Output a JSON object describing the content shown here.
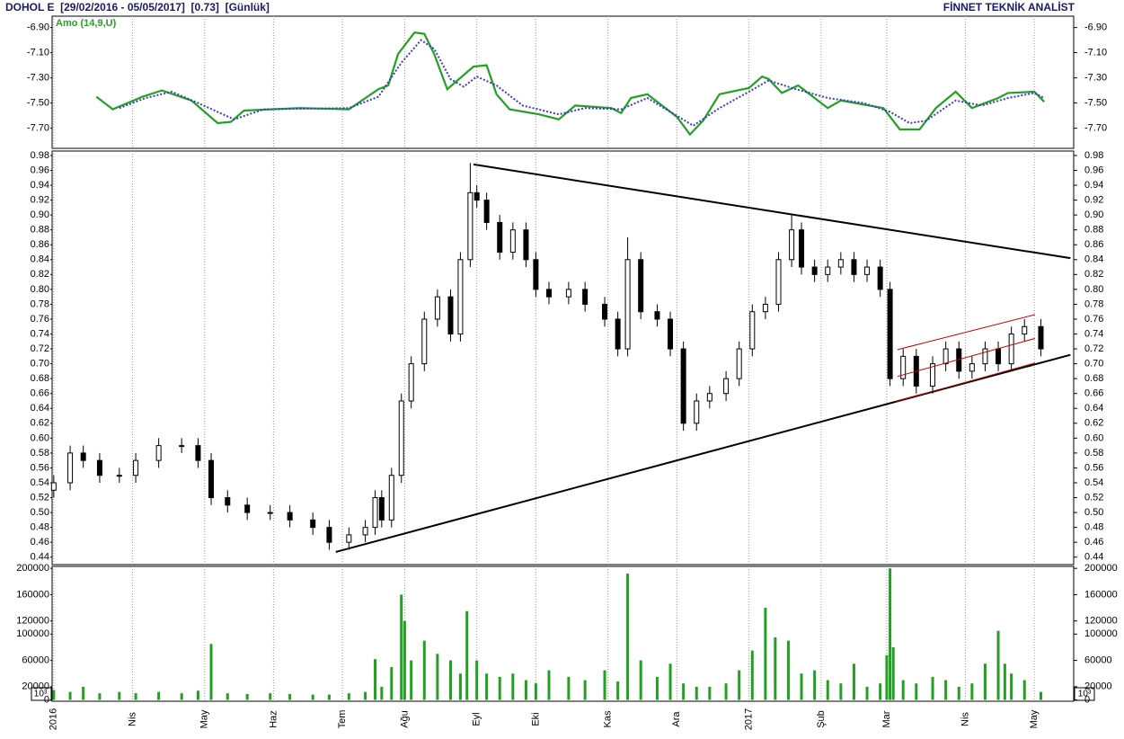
{
  "header": {
    "title": "DOHOL E  [29/02/2016 - 05/05/2017]  [0.73]  [Günlük]",
    "brand": "FİNNET TEKNİK ANALİST"
  },
  "chart_data": [
    {
      "type": "line",
      "label": "Amo (14,9,U)",
      "xlim": [
        -0.5,
        311
      ],
      "ylim": [
        -7.86,
        -6.81
      ],
      "yticks": [
        {
          "value": -6.9,
          "label": "-6.90"
        },
        {
          "value": -7.1,
          "label": "-7.10"
        },
        {
          "value": -7.3,
          "label": "-7.30"
        },
        {
          "value": -7.5,
          "label": "-7.50"
        },
        {
          "value": -7.7,
          "label": "-7.70"
        }
      ],
      "series": [
        {
          "color": "#22a022",
          "x": [
            13,
            18,
            27,
            33,
            42,
            50,
            54,
            58,
            75,
            90,
            99,
            102,
            105,
            110,
            113,
            116,
            120,
            128,
            132,
            135,
            139,
            148,
            154,
            159,
            170,
            173,
            176,
            181,
            190,
            194,
            198,
            203,
            212,
            216,
            218,
            222,
            227,
            236,
            240,
            253,
            258,
            264,
            269,
            275,
            280,
            288,
            291,
            299,
            302
          ],
          "values": [
            -7.45,
            -7.55,
            -7.45,
            -7.4,
            -7.48,
            -7.66,
            -7.65,
            -7.56,
            -7.54,
            -7.55,
            -7.39,
            -7.36,
            -7.11,
            -6.94,
            -6.95,
            -7.11,
            -7.39,
            -7.21,
            -7.2,
            -7.43,
            -7.55,
            -7.59,
            -7.63,
            -7.52,
            -7.54,
            -7.58,
            -7.46,
            -7.43,
            -7.61,
            -7.75,
            -7.64,
            -7.43,
            -7.38,
            -7.29,
            -7.31,
            -7.42,
            -7.36,
            -7.54,
            -7.48,
            -7.54,
            -7.71,
            -7.71,
            -7.54,
            -7.41,
            -7.54,
            -7.46,
            -7.42,
            -7.41,
            -7.49
          ]
        },
        {
          "color": "#3a3ad0",
          "dash": true,
          "x": [
            20,
            28,
            36,
            44,
            55,
            64,
            90,
            99,
            106,
            112,
            116,
            121,
            125,
            129,
            135,
            143,
            154,
            162,
            173,
            181,
            195,
            203,
            212,
            218,
            225,
            236,
            247,
            255,
            261,
            266,
            275,
            283,
            291,
            299,
            302
          ],
          "values": [
            -7.54,
            -7.46,
            -7.41,
            -7.5,
            -7.63,
            -7.55,
            -7.54,
            -7.45,
            -7.18,
            -7.0,
            -7.07,
            -7.31,
            -7.37,
            -7.29,
            -7.36,
            -7.52,
            -7.59,
            -7.54,
            -7.55,
            -7.46,
            -7.68,
            -7.54,
            -7.41,
            -7.32,
            -7.38,
            -7.46,
            -7.5,
            -7.57,
            -7.66,
            -7.64,
            -7.48,
            -7.52,
            -7.46,
            -7.42,
            -7.46
          ]
        }
      ]
    },
    {
      "type": "candlestick",
      "xlim": [
        -0.5,
        311
      ],
      "ylim": [
        0.43,
        0.986
      ],
      "yticks": [
        {
          "value": 0.44,
          "label": "0.44"
        },
        {
          "value": 0.46,
          "label": "0.46"
        },
        {
          "value": 0.48,
          "label": "0.48"
        },
        {
          "value": 0.5,
          "label": "0.50"
        },
        {
          "value": 0.52,
          "label": "0.52"
        },
        {
          "value": 0.54,
          "label": "0.54"
        },
        {
          "value": 0.56,
          "label": "0.56"
        },
        {
          "value": 0.58,
          "label": "0.58"
        },
        {
          "value": 0.6,
          "label": "0.60"
        },
        {
          "value": 0.62,
          "label": "0.62"
        },
        {
          "value": 0.64,
          "label": "0.64"
        },
        {
          "value": 0.66,
          "label": "0.66"
        },
        {
          "value": 0.68,
          "label": "0.68"
        },
        {
          "value": 0.7,
          "label": "0.70"
        },
        {
          "value": 0.72,
          "label": "0.72"
        },
        {
          "value": 0.74,
          "label": "0.74"
        },
        {
          "value": 0.76,
          "label": "0.76"
        },
        {
          "value": 0.78,
          "label": "0.78"
        },
        {
          "value": 0.8,
          "label": "0.80"
        },
        {
          "value": 0.82,
          "label": "0.82"
        },
        {
          "value": 0.84,
          "label": "0.84"
        },
        {
          "value": 0.86,
          "label": "0.86"
        },
        {
          "value": 0.88,
          "label": "0.88"
        },
        {
          "value": 0.9,
          "label": "0.90"
        },
        {
          "value": 0.92,
          "label": "0.92"
        },
        {
          "value": 0.94,
          "label": "0.94"
        },
        {
          "value": 0.96,
          "label": "0.96"
        },
        {
          "value": 0.98,
          "label": "0.98"
        }
      ],
      "x": [
        0,
        5,
        9,
        14,
        20,
        25,
        32,
        39,
        44,
        48,
        53,
        59,
        66,
        72,
        79,
        84,
        90,
        95,
        98,
        100,
        103,
        106,
        109,
        113,
        117,
        121,
        124,
        127,
        129,
        132,
        136,
        140,
        144,
        147,
        151,
        157,
        162,
        168,
        172,
        175,
        179,
        184,
        188,
        192,
        196,
        200,
        205,
        209,
        213,
        217,
        221,
        225,
        228,
        232,
        236,
        240,
        244,
        248,
        252,
        255,
        259,
        263,
        268,
        272,
        276,
        280,
        284,
        288,
        292,
        296,
        301
      ],
      "open": [
        0.53,
        0.54,
        0.58,
        0.57,
        0.55,
        0.55,
        0.57,
        0.59,
        0.59,
        0.57,
        0.52,
        0.51,
        0.5,
        0.5,
        0.49,
        0.48,
        0.46,
        0.47,
        0.48,
        0.52,
        0.49,
        0.55,
        0.65,
        0.7,
        0.76,
        0.79,
        0.74,
        0.84,
        0.93,
        0.92,
        0.89,
        0.85,
        0.88,
        0.84,
        0.8,
        0.79,
        0.8,
        0.78,
        0.76,
        0.72,
        0.84,
        0.77,
        0.76,
        0.72,
        0.62,
        0.65,
        0.66,
        0.68,
        0.72,
        0.77,
        0.78,
        0.84,
        0.88,
        0.83,
        0.82,
        0.83,
        0.84,
        0.82,
        0.83,
        0.8,
        0.68,
        0.71,
        0.67,
        0.7,
        0.72,
        0.69,
        0.7,
        0.72,
        0.7,
        0.74,
        0.75
      ],
      "high": [
        0.55,
        0.59,
        0.59,
        0.58,
        0.56,
        0.58,
        0.6,
        0.6,
        0.6,
        0.58,
        0.53,
        0.52,
        0.51,
        0.51,
        0.5,
        0.49,
        0.48,
        0.49,
        0.53,
        0.53,
        0.56,
        0.66,
        0.71,
        0.77,
        0.8,
        0.8,
        0.85,
        0.97,
        0.94,
        0.93,
        0.9,
        0.89,
        0.89,
        0.85,
        0.81,
        0.81,
        0.81,
        0.79,
        0.77,
        0.87,
        0.85,
        0.78,
        0.77,
        0.73,
        0.66,
        0.67,
        0.69,
        0.73,
        0.78,
        0.79,
        0.85,
        0.9,
        0.89,
        0.84,
        0.84,
        0.85,
        0.85,
        0.84,
        0.84,
        0.81,
        0.72,
        0.72,
        0.71,
        0.73,
        0.73,
        0.71,
        0.73,
        0.73,
        0.75,
        0.76,
        0.76
      ],
      "low": [
        0.52,
        0.53,
        0.56,
        0.54,
        0.54,
        0.54,
        0.56,
        0.58,
        0.56,
        0.51,
        0.5,
        0.49,
        0.49,
        0.48,
        0.47,
        0.45,
        0.45,
        0.46,
        0.47,
        0.48,
        0.48,
        0.54,
        0.64,
        0.69,
        0.75,
        0.73,
        0.73,
        0.83,
        0.91,
        0.88,
        0.84,
        0.84,
        0.83,
        0.79,
        0.78,
        0.78,
        0.77,
        0.75,
        0.71,
        0.71,
        0.76,
        0.75,
        0.71,
        0.61,
        0.61,
        0.64,
        0.65,
        0.67,
        0.71,
        0.76,
        0.77,
        0.83,
        0.82,
        0.81,
        0.81,
        0.82,
        0.81,
        0.81,
        0.79,
        0.67,
        0.67,
        0.66,
        0.66,
        0.69,
        0.68,
        0.68,
        0.69,
        0.69,
        0.69,
        0.73,
        0.71
      ],
      "close": [
        0.54,
        0.58,
        0.57,
        0.55,
        0.55,
        0.57,
        0.59,
        0.59,
        0.57,
        0.52,
        0.51,
        0.5,
        0.5,
        0.49,
        0.48,
        0.46,
        0.47,
        0.48,
        0.52,
        0.49,
        0.55,
        0.65,
        0.7,
        0.76,
        0.79,
        0.74,
        0.84,
        0.93,
        0.92,
        0.89,
        0.85,
        0.88,
        0.84,
        0.8,
        0.79,
        0.8,
        0.78,
        0.76,
        0.72,
        0.84,
        0.77,
        0.76,
        0.72,
        0.62,
        0.65,
        0.66,
        0.68,
        0.72,
        0.77,
        0.78,
        0.84,
        0.88,
        0.83,
        0.82,
        0.83,
        0.84,
        0.82,
        0.83,
        0.8,
        0.68,
        0.71,
        0.67,
        0.7,
        0.72,
        0.69,
        0.7,
        0.72,
        0.7,
        0.74,
        0.75,
        0.72
      ],
      "trendlines": [
        {
          "color": "#000000",
          "x": [
            86,
            310
          ],
          "y": [
            0.447,
            0.712
          ]
        },
        {
          "color": "#000000",
          "x": [
            128,
            310
          ],
          "y": [
            0.968,
            0.842
          ]
        },
        {
          "color": "#c00000",
          "x": [
            256.7,
            299.2
          ],
          "y": [
            0.649,
            0.701
          ]
        },
        {
          "color": "#c00000",
          "x": [
            257.3,
            299.2
          ],
          "y": [
            0.683,
            0.734
          ]
        },
        {
          "color": "#c00000",
          "x": [
            257.3,
            299.2
          ],
          "y": [
            0.719,
            0.766
          ]
        }
      ]
    },
    {
      "type": "bar",
      "unit": "10³",
      "color": "#22a022",
      "xlim": [
        -0.5,
        311
      ],
      "ylim": [
        -2100,
        203000
      ],
      "yticks": [
        0,
        20000,
        60000,
        100000,
        120000,
        160000,
        200000
      ],
      "xticks": [
        {
          "value": 0,
          "label": "2016"
        },
        {
          "value": 24,
          "label": "Nis"
        },
        {
          "value": 46,
          "label": "May"
        },
        {
          "value": 67,
          "label": "Haz"
        },
        {
          "value": 88,
          "label": "Tem"
        },
        {
          "value": 107,
          "label": "Ağu"
        },
        {
          "value": 129,
          "label": "Eyl"
        },
        {
          "value": 147,
          "label": "Eki"
        },
        {
          "value": 169,
          "label": "Kas"
        },
        {
          "value": 190,
          "label": "Ara"
        },
        {
          "value": 212,
          "label": "2017"
        },
        {
          "value": 234,
          "label": "Şub"
        },
        {
          "value": 254,
          "label": "Mar"
        },
        {
          "value": 278,
          "label": "Nis"
        },
        {
          "value": 299,
          "label": "May"
        }
      ],
      "x": [
        0,
        5,
        9,
        14,
        20,
        25,
        32,
        39,
        44,
        48,
        53,
        59,
        66,
        72,
        79,
        84,
        90,
        95,
        98,
        100,
        103,
        106,
        107,
        109,
        113,
        117,
        121,
        124,
        126,
        129,
        132,
        136,
        140,
        144,
        147,
        151,
        157,
        162,
        168,
        172,
        175,
        179,
        184,
        188,
        192,
        196,
        200,
        205,
        209,
        213,
        217,
        220,
        224,
        228,
        232,
        236,
        240,
        244,
        248,
        252,
        254,
        255,
        256,
        259,
        263,
        268,
        272,
        276,
        280,
        284,
        288,
        290,
        292,
        296,
        301
      ],
      "values": [
        15000,
        12000,
        20000,
        10000,
        12000,
        10000,
        12000,
        10000,
        14000,
        85000,
        10000,
        9000,
        10000,
        9000,
        8000,
        8000,
        10000,
        12000,
        62000,
        20000,
        50000,
        160000,
        120000,
        60000,
        90000,
        70000,
        60000,
        40000,
        135000,
        60000,
        40000,
        35000,
        40000,
        30000,
        25000,
        45000,
        35000,
        30000,
        45000,
        28000,
        192000,
        60000,
        35000,
        55000,
        25000,
        20000,
        20000,
        25000,
        45000,
        75000,
        140000,
        95000,
        90000,
        40000,
        45000,
        30000,
        25000,
        55000,
        20000,
        25000,
        68000,
        200000,
        80000,
        30000,
        25000,
        35000,
        30000,
        20000,
        25000,
        55000,
        105000,
        55000,
        40000,
        30000,
        12000
      ]
    }
  ]
}
